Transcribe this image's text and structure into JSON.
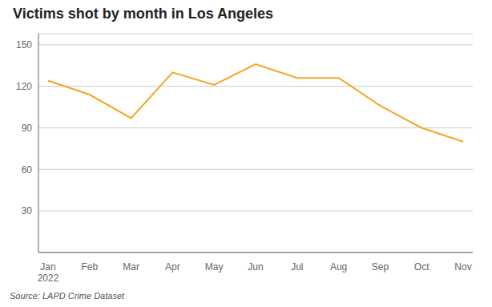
{
  "chart_data": {
    "type": "line",
    "title": "Victims shot by month in Los Angeles",
    "categories": [
      "Jan\n2022",
      "Feb",
      "Mar",
      "Apr",
      "May",
      "Jun",
      "Jul",
      "Aug",
      "Sep",
      "Oct",
      "Nov"
    ],
    "values": [
      124,
      114,
      97,
      130,
      121,
      136,
      126,
      126,
      106,
      90,
      80
    ],
    "color": "#F5A623",
    "ylim": [
      0,
      158
    ],
    "yticks": [
      30,
      60,
      90,
      120,
      150
    ],
    "grid": true,
    "annotations": [
      "Source: LAPD Crime Dataset"
    ]
  }
}
